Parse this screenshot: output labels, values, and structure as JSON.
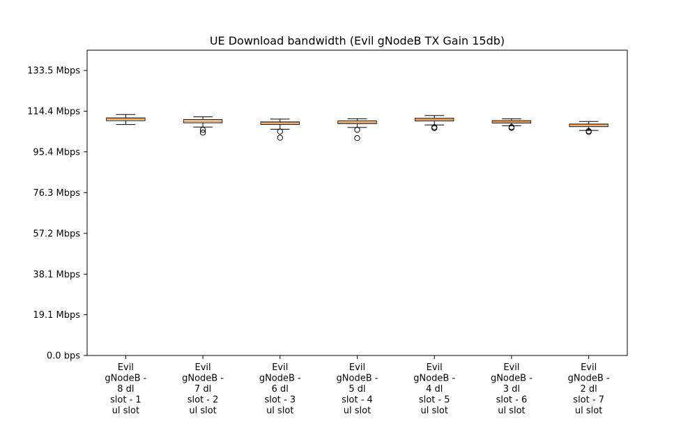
{
  "chart_data": {
    "type": "box",
    "title": "UE Download bandwidth (Evil gNodeB TX Gain 15db)",
    "xlabel": "",
    "ylabel": "",
    "ylim": [
      0,
      143.0
    ],
    "y_ticks": [
      {
        "value": 0.0,
        "label": "0.0 bps"
      },
      {
        "value": 19.1,
        "label": "19.1 Mbps"
      },
      {
        "value": 38.1,
        "label": "38.1 Mbps"
      },
      {
        "value": 57.2,
        "label": "57.2 Mbps"
      },
      {
        "value": 76.3,
        "label": "76.3 Mbps"
      },
      {
        "value": 95.4,
        "label": "95.4 Mbps"
      },
      {
        "value": 114.4,
        "label": "114.4 Mbps"
      },
      {
        "value": 133.5,
        "label": "133.5 Mbps"
      }
    ],
    "categories": [
      [
        "Evil",
        "gNodeB -",
        "8 dl",
        "slot - 1",
        "ul slot"
      ],
      [
        "Evil",
        "gNodeB -",
        "7 dl",
        "slot - 2",
        "ul slot"
      ],
      [
        "Evil",
        "gNodeB -",
        "6 dl",
        "slot - 3",
        "ul slot"
      ],
      [
        "Evil",
        "gNodeB -",
        "5 dl",
        "slot - 4",
        "ul slot"
      ],
      [
        "Evil",
        "gNodeB -",
        "4 dl",
        "slot - 5",
        "ul slot"
      ],
      [
        "Evil",
        "gNodeB -",
        "3 dl",
        "slot - 6",
        "ul slot"
      ],
      [
        "Evil",
        "gNodeB -",
        "2 dl",
        "slot - 7",
        "ul slot"
      ]
    ],
    "boxes": [
      {
        "whisker_low": 108.2,
        "q1": 110.0,
        "median": 110.8,
        "q3": 111.3,
        "whisker_high": 112.9,
        "outliers": []
      },
      {
        "whisker_low": 107.0,
        "q1": 109.0,
        "median": 109.8,
        "q3": 110.5,
        "whisker_high": 111.8,
        "outliers": [
          105.7,
          104.4
        ]
      },
      {
        "whisker_low": 106.0,
        "q1": 108.2,
        "median": 108.9,
        "q3": 109.4,
        "whisker_high": 110.7,
        "outliers": [
          104.9,
          102.0
        ]
      },
      {
        "whisker_low": 106.8,
        "q1": 108.6,
        "median": 109.2,
        "q3": 109.9,
        "whisker_high": 110.9,
        "outliers": [
          105.7,
          101.8
        ]
      },
      {
        "whisker_low": 108.0,
        "q1": 109.9,
        "median": 110.5,
        "q3": 111.1,
        "whisker_high": 112.4,
        "outliers": [
          107.0,
          106.5
        ]
      },
      {
        "whisker_low": 107.6,
        "q1": 108.9,
        "median": 109.5,
        "q3": 110.0,
        "whisker_high": 110.9,
        "outliers": [
          107.0,
          106.6
        ]
      },
      {
        "whisker_low": 105.4,
        "q1": 107.2,
        "median": 107.9,
        "q3": 108.4,
        "whisker_high": 109.6,
        "outliers": [
          105.1,
          104.7
        ]
      }
    ],
    "colors": {
      "box": "#000000",
      "median": "#ff7f0e",
      "whisker": "#000000",
      "outlier": "#000000"
    },
    "grid": false,
    "legend": "none"
  }
}
